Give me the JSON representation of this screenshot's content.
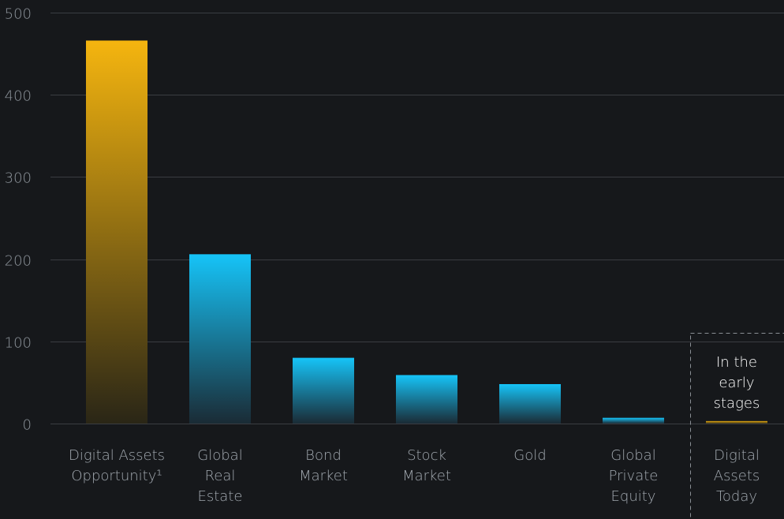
{
  "chart_data": {
    "type": "bar",
    "title": "",
    "xlabel": "",
    "ylabel": "",
    "ylim": [
      0,
      500
    ],
    "yticks": [
      "0",
      "100",
      "200",
      "300",
      "400",
      "500"
    ],
    "grid": true,
    "legend": "none",
    "categories": [
      [
        "Digital Assets",
        "Opportunity¹"
      ],
      [
        "Global",
        "Real",
        "Estate"
      ],
      [
        "Bond",
        "Market"
      ],
      [
        "Stock",
        "Market"
      ],
      [
        "Gold"
      ],
      [
        "Global",
        "Private",
        "Equity"
      ],
      [
        "Digital",
        "Assets",
        "Today"
      ]
    ],
    "values": [
      466,
      206,
      80,
      59,
      48,
      7,
      3
    ],
    "bar_colors": [
      "gold",
      "blue",
      "blue",
      "blue",
      "blue",
      "blue",
      "gold"
    ],
    "highlight": {
      "category_index": 6,
      "style": "dashed-box",
      "annotation": [
        "In the",
        "early",
        "stages"
      ]
    },
    "colors": {
      "background": "#16181b",
      "gold_top": "#f5b50f",
      "gold_bottom": "#2a2616",
      "blue_top": "#16c4f8",
      "blue_bottom": "#1a2b35",
      "grid": "#3a3d42",
      "tick_text": "#8d949b",
      "category_text": "#a2a9b0",
      "annotation_text": "#ffffff"
    }
  }
}
